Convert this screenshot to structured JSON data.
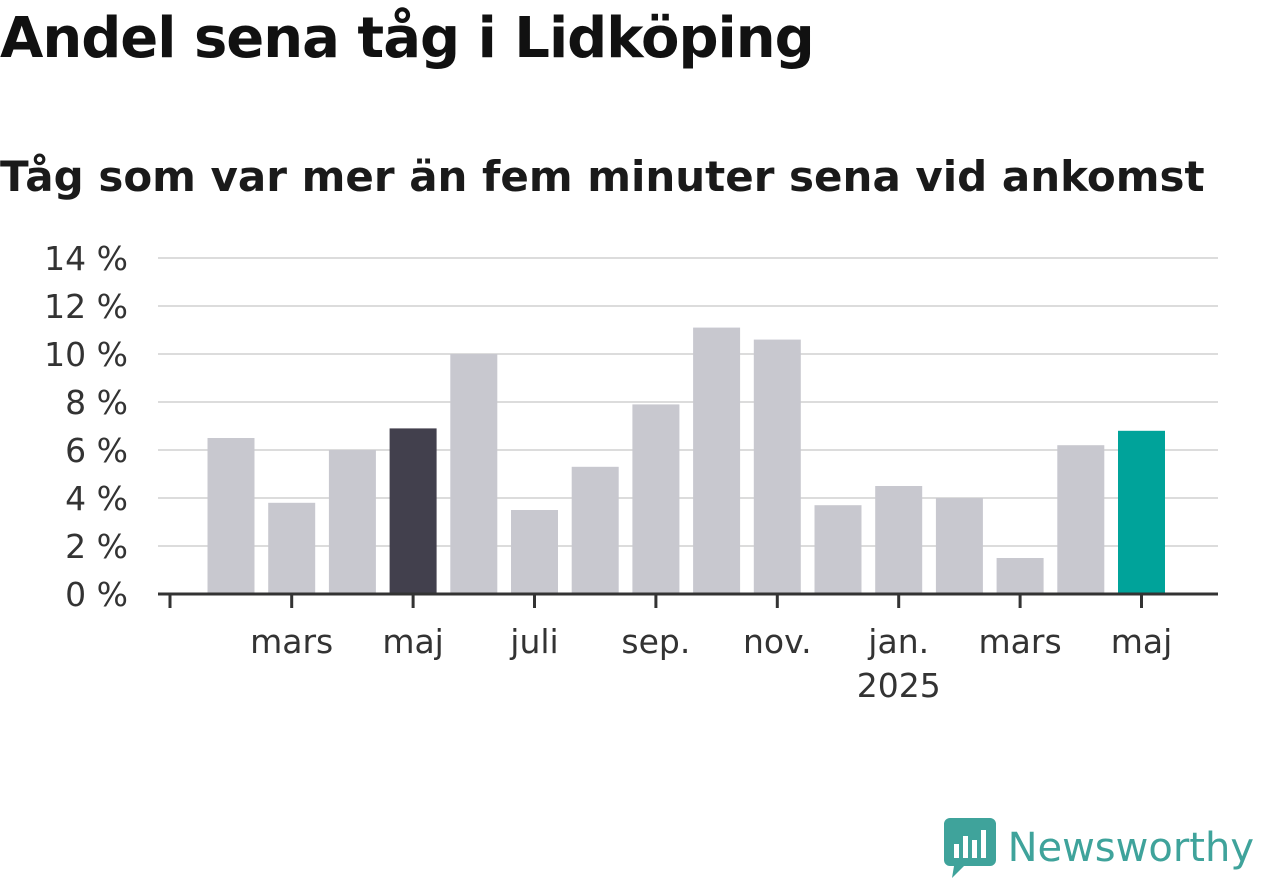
{
  "header": {
    "title": "Andel sena tåg i Lidköping",
    "subtitle": "Tåg som var mer än fem minuter sena vid ankomst"
  },
  "brand": {
    "name": "Newsworthy",
    "logo_icon": "bar-chart-badge-icon",
    "color": "#3fa39b"
  },
  "colors": {
    "bar_default": "#c8c8cf",
    "bar_highlight_dark": "#42404d",
    "bar_highlight_accent": "#00a39a",
    "grid": "#dcdcdc",
    "axis": "#333333"
  },
  "chart_data": {
    "type": "bar",
    "title": "Andel sena tåg i Lidköping",
    "subtitle": "Tåg som var mer än fem minuter sena vid ankomst",
    "xlabel": "",
    "ylabel": "",
    "unit": "%",
    "ylim": [
      0,
      14
    ],
    "yticks": [
      0,
      2,
      4,
      6,
      8,
      10,
      12,
      14
    ],
    "ytick_labels": [
      "0 %",
      "2 %",
      "4 %",
      "6 %",
      "8 %",
      "10 %",
      "12 %",
      "14 %"
    ],
    "grid": true,
    "months": [
      "2024-02",
      "2024-03",
      "2024-04",
      "2024-05",
      "2024-06",
      "2024-07",
      "2024-08",
      "2024-09",
      "2024-10",
      "2024-11",
      "2024-12",
      "2025-01",
      "2025-02",
      "2025-03",
      "2025-04",
      "2025-05"
    ],
    "values": [
      6.5,
      3.8,
      6.0,
      6.9,
      10.0,
      3.5,
      5.3,
      7.9,
      11.1,
      10.6,
      3.7,
      4.5,
      4.0,
      1.5,
      6.2,
      6.8
    ],
    "highlight": {
      "2024-05": "dark",
      "2025-05": "accent"
    },
    "x_tick_labels": [
      {
        "month": "2024-03",
        "label": "mars",
        "sublabel": ""
      },
      {
        "month": "2024-05",
        "label": "maj",
        "sublabel": ""
      },
      {
        "month": "2024-07",
        "label": "juli",
        "sublabel": ""
      },
      {
        "month": "2024-09",
        "label": "sep.",
        "sublabel": ""
      },
      {
        "month": "2024-11",
        "label": "nov.",
        "sublabel": ""
      },
      {
        "month": "2025-01",
        "label": "jan.",
        "sublabel": "2025"
      },
      {
        "month": "2025-03",
        "label": "mars",
        "sublabel": ""
      },
      {
        "month": "2025-05",
        "label": "maj",
        "sublabel": ""
      }
    ]
  }
}
